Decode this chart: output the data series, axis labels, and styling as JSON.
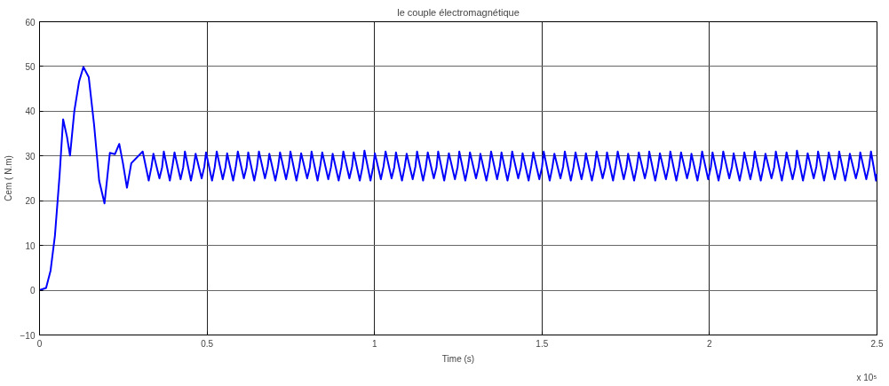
{
  "chart_data": {
    "type": "line",
    "title": "le couple électromagnétique",
    "xlabel": "Time (s)",
    "ylabel": "Cem ( N.m)",
    "annotations": [
      "x 10⁵"
    ],
    "xlim": [
      0,
      2.5
    ],
    "xticks": [
      0,
      0.5,
      1,
      1.5,
      2,
      2.5
    ],
    "ylim": [
      -10,
      60
    ],
    "yticks": [
      -10,
      0,
      10,
      20,
      30,
      40,
      50,
      60
    ],
    "grid": true,
    "line_style": "solid",
    "x": [
      0,
      0.0196,
      0.033,
      0.046,
      0.06,
      0.0705,
      0.082,
      0.091,
      0.104,
      0.118,
      0.131,
      0.147,
      0.163,
      0.178,
      0.194,
      0.21,
      0.225,
      0.238,
      0.249,
      0.261,
      0.274,
      0.308,
      0.326,
      0.334,
      0.34,
      0.358,
      0.366,
      0.371,
      0.389,
      0.397,
      0.403,
      0.421,
      0.429,
      0.434,
      0.452,
      0.46,
      0.466,
      0.484,
      0.492,
      0.497,
      0.515,
      0.523,
      0.529,
      0.547,
      0.555,
      0.56,
      0.578,
      0.586,
      0.592,
      0.61,
      0.618,
      0.623,
      0.641,
      0.649,
      0.655,
      0.673,
      0.681,
      0.686,
      0.704,
      0.712,
      0.718,
      0.736,
      0.744,
      0.749,
      0.767,
      0.775,
      0.781,
      0.799,
      0.807,
      0.812,
      0.83,
      0.838,
      0.844,
      0.862,
      0.87,
      0.875,
      0.893,
      0.901,
      0.907,
      0.925,
      0.933,
      0.938,
      0.956,
      0.964,
      0.97,
      0.988,
      0.996,
      1.001,
      1.019,
      1.027,
      1.033,
      1.051,
      1.059,
      1.064,
      1.082,
      1.09,
      1.096,
      1.114,
      1.122,
      1.127,
      1.145,
      1.153,
      1.159,
      1.177,
      1.185,
      1.19,
      1.208,
      1.216,
      1.222,
      1.24,
      1.248,
      1.253,
      1.271,
      1.279,
      1.285,
      1.303,
      1.311,
      1.316,
      1.334,
      1.342,
      1.348,
      1.366,
      1.374,
      1.379,
      1.397,
      1.405,
      1.411,
      1.429,
      1.437,
      1.442,
      1.46,
      1.468,
      1.474,
      1.492,
      1.5,
      1.505,
      1.523,
      1.531,
      1.537,
      1.555,
      1.563,
      1.568,
      1.586,
      1.594,
      1.6,
      1.618,
      1.626,
      1.631,
      1.649,
      1.657,
      1.663,
      1.681,
      1.689,
      1.694,
      1.712,
      1.72,
      1.726,
      1.744,
      1.752,
      1.757,
      1.775,
      1.783,
      1.789,
      1.807,
      1.815,
      1.82,
      1.838,
      1.846,
      1.852,
      1.87,
      1.878,
      1.883,
      1.901,
      1.909,
      1.915,
      1.933,
      1.941,
      1.946,
      1.964,
      1.972,
      1.978,
      1.996,
      2.004,
      2.009,
      2.027,
      2.035,
      2.041,
      2.059,
      2.067,
      2.072,
      2.09,
      2.098,
      2.104,
      2.122,
      2.13,
      2.135,
      2.153,
      2.161,
      2.167,
      2.185,
      2.193,
      2.198,
      2.216,
      2.224,
      2.23,
      2.248,
      2.256,
      2.261,
      2.279,
      2.287,
      2.293,
      2.311,
      2.319,
      2.324,
      2.342,
      2.35,
      2.356,
      2.374,
      2.382,
      2.387,
      2.405,
      2.413,
      2.419,
      2.437,
      2.445,
      2.45,
      2.468,
      2.476,
      2.482,
      2.497,
      2.5
    ],
    "series": [
      {
        "color": "#0000ff",
        "values": [
          0,
          0.5,
          4.4,
          12.2,
          25.8,
          38.2,
          34.3,
          30.1,
          40.1,
          46.6,
          49.9,
          47.6,
          36.9,
          24.5,
          19.4,
          30.7,
          30.4,
          32.7,
          28.4,
          22.9,
          28.4,
          31,
          24.5,
          27.5,
          30.5,
          25,
          27.5,
          31,
          24.5,
          27.8,
          30.8,
          24.8,
          27.5,
          31,
          24.5,
          27.5,
          30.5,
          25,
          27.6,
          30.8,
          24.5,
          27.5,
          31,
          24.8,
          27.5,
          30.6,
          24.5,
          27.7,
          31,
          25,
          27.5,
          30.8,
          24.5,
          27.5,
          31,
          25,
          27.6,
          30.5,
          24.5,
          27.5,
          30.8,
          24.8,
          27.7,
          31,
          24.5,
          27.5,
          30.6,
          25,
          27.5,
          31,
          24.5,
          27.8,
          30.8,
          24.8,
          27.5,
          30.5,
          24.5,
          27.5,
          31,
          25,
          27.6,
          30.8,
          24.5,
          27.5,
          31.2,
          24.5,
          27.5,
          30.6,
          24.8,
          27.7,
          31,
          25,
          27.5,
          30.8,
          24.5,
          27.5,
          30.5,
          24.8,
          27.6,
          31,
          24.5,
          27.5,
          30.8,
          25,
          27.5,
          31,
          24.5,
          27.8,
          30.6,
          24.8,
          27.5,
          31,
          24.5,
          27.5,
          30.8,
          25,
          27.6,
          30.5,
          24.5,
          27.5,
          31,
          24.8,
          27.7,
          30.8,
          24.5,
          27.5,
          31,
          25,
          27.5,
          30.6,
          24.5,
          27.8,
          30.8,
          24.8,
          27.5,
          31,
          24.5,
          27.5,
          30.5,
          25,
          27.6,
          31,
          24.5,
          27.5,
          30.8,
          24.8,
          27.7,
          30.6,
          24.5,
          27.5,
          31,
          25,
          27.5,
          30.8,
          24.5,
          27.8,
          31,
          24.8,
          27.5,
          30.5,
          24.5,
          27.5,
          30.8,
          25,
          27.6,
          31,
          24.5,
          27.5,
          30.6,
          24.8,
          27.7,
          31,
          24.5,
          27.5,
          30.8,
          25,
          27.5,
          30.5,
          24.5,
          27.8,
          31,
          24.8,
          27.5,
          30.8,
          24.5,
          27.5,
          31,
          25,
          27.6,
          30.6,
          24.5,
          27.5,
          30.8,
          24.8,
          27.7,
          31,
          24.5,
          27.5,
          30.5,
          25,
          27.5,
          31,
          24.5,
          27.8,
          30.8,
          24.8,
          27.5,
          31.2,
          24.5,
          27.5,
          30.6,
          25,
          27.6,
          31,
          24.5,
          27.5,
          30.8,
          24.8,
          27.7,
          31,
          24.5,
          27.5,
          30.5,
          25,
          27.5,
          30.8,
          24.8,
          27.5,
          31,
          24.5,
          26
        ]
      }
    ]
  }
}
